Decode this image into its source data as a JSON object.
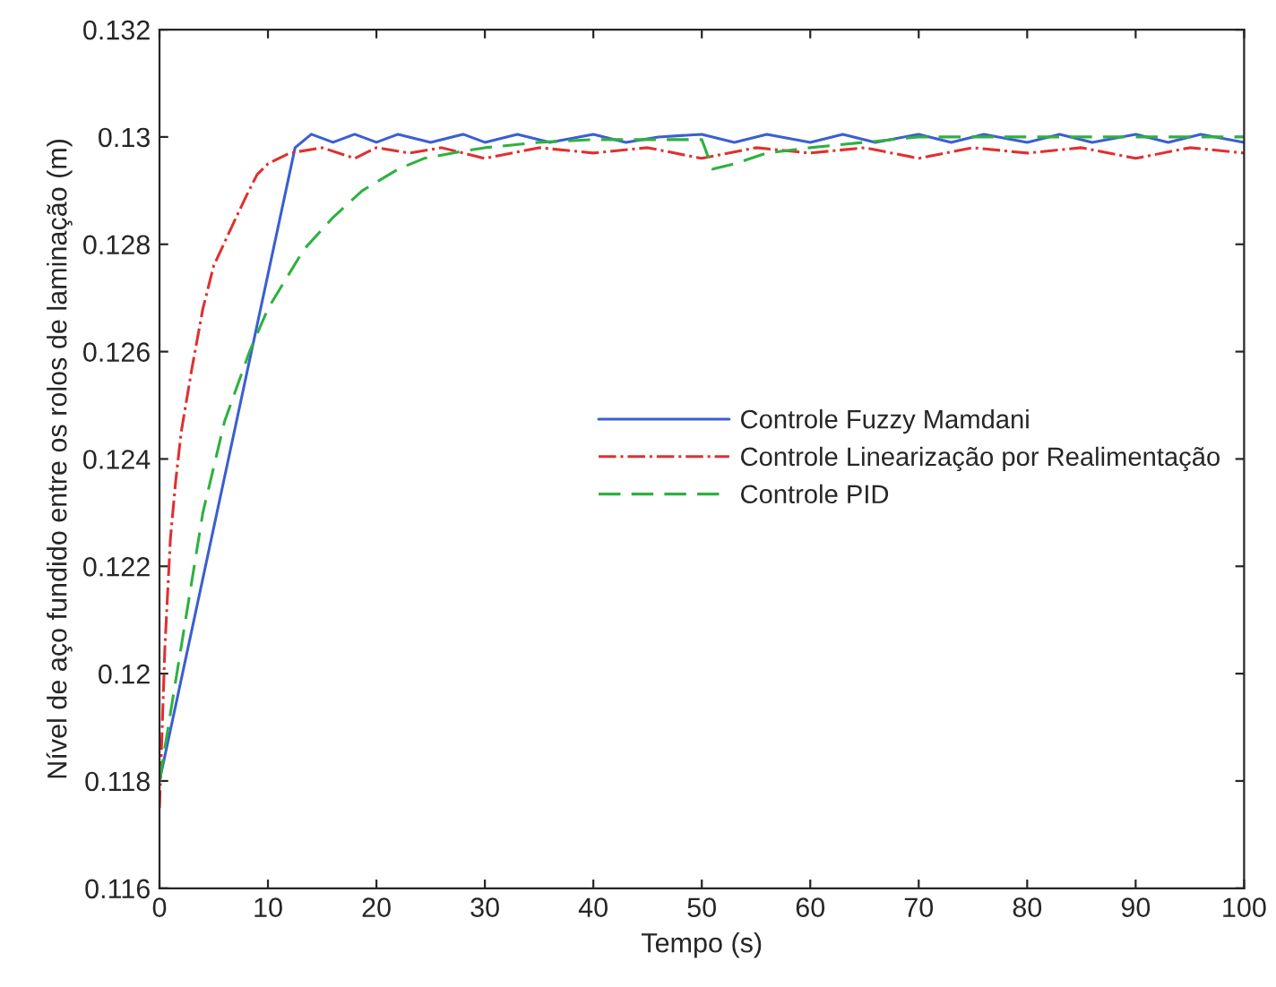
{
  "chart_data": {
    "type": "line",
    "xlabel": "Tempo (s)",
    "ylabel": "Nível de aço fundido entre os rolos de laminação (m)",
    "xlim": [
      0,
      100
    ],
    "ylim": [
      0.116,
      0.132
    ],
    "xticks": [
      0,
      10,
      20,
      30,
      40,
      50,
      60,
      70,
      80,
      90,
      100
    ],
    "yticks": [
      0.116,
      0.118,
      0.12,
      0.122,
      0.124,
      0.126,
      0.128,
      {
        "value": 0.13,
        "label": "0.13"
      },
      0.132
    ],
    "legend": "center right",
    "grid": false,
    "series": [
      {
        "name": "Controle Fuzzy Mamdani",
        "color": "#3a5fd0",
        "line_style": "solid",
        "x": [
          0,
          12.5,
          14,
          16,
          18,
          20,
          22,
          25,
          28,
          30,
          33,
          36,
          40,
          43,
          46,
          50,
          53,
          56,
          60,
          63,
          66,
          70,
          73,
          76,
          80,
          83,
          86,
          90,
          93,
          96,
          100
        ],
        "values": [
          0.118,
          0.1298,
          0.13005,
          0.1299,
          0.13005,
          0.1299,
          0.13005,
          0.1299,
          0.13005,
          0.1299,
          0.13005,
          0.1299,
          0.13005,
          0.1299,
          0.13,
          0.13005,
          0.1299,
          0.13005,
          0.1299,
          0.13005,
          0.1299,
          0.13005,
          0.1299,
          0.13005,
          0.1299,
          0.13005,
          0.1299,
          0.13005,
          0.1299,
          0.13005,
          0.1299
        ]
      },
      {
        "name": "Controle Linearização por Realimentação",
        "color": "#e03030",
        "line_style": "dashdot",
        "x": [
          0,
          0.5,
          1,
          1.5,
          2,
          3,
          4,
          5,
          6.6,
          8,
          9,
          10,
          12,
          15,
          18,
          20,
          23,
          26,
          30,
          35,
          40,
          45,
          50,
          55,
          60,
          65,
          70,
          75,
          80,
          85,
          90,
          95,
          100
        ],
        "values": [
          0.1175,
          0.1205,
          0.1225,
          0.1236,
          0.1245,
          0.1257,
          0.1268,
          0.1276,
          0.1283,
          0.1289,
          0.1293,
          0.1295,
          0.1297,
          0.1298,
          0.1296,
          0.1298,
          0.1297,
          0.1298,
          0.1296,
          0.1298,
          0.1297,
          0.1298,
          0.1296,
          0.1298,
          0.1297,
          0.1298,
          0.1296,
          0.1298,
          0.1297,
          0.1298,
          0.1296,
          0.1298,
          0.1297
        ]
      },
      {
        "name": "Controle PID",
        "color": "#30b040",
        "line_style": "dashed",
        "x": [
          0,
          2,
          4,
          6,
          8.3,
          10,
          13.3,
          16,
          18.7,
          22,
          24.4,
          27,
          30,
          35,
          40,
          45,
          50,
          51,
          53,
          56,
          60,
          65,
          70,
          75,
          80,
          85,
          90,
          95,
          100
        ],
        "values": [
          0.118,
          0.1205,
          0.123,
          0.1247,
          0.126,
          0.1268,
          0.1279,
          0.1285,
          0.129,
          0.1294,
          0.1296,
          0.1297,
          0.1298,
          0.1299,
          0.12995,
          0.12995,
          0.12995,
          0.1294,
          0.1295,
          0.1297,
          0.1298,
          0.1299,
          0.13,
          0.13,
          0.13,
          0.13,
          0.13,
          0.13,
          0.13
        ]
      }
    ]
  }
}
